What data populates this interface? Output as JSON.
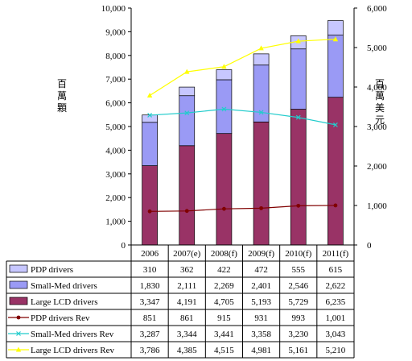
{
  "chart_data": {
    "type": "bar",
    "stacked": true,
    "categories": [
      "2006",
      "2007(e)",
      "2008(f)",
      "2009(f)",
      "2010(f)",
      "2011(f)"
    ],
    "ylabel_left": "百萬顆",
    "ylabel_right": "百萬美元",
    "ylim_left": [
      0,
      10000
    ],
    "ylim_right": [
      0,
      6000
    ],
    "left_ticks": [
      "0",
      "1,000",
      "2,000",
      "3,000",
      "4,000",
      "5,000",
      "6,000",
      "7,000",
      "8,000",
      "9,000",
      "10,000"
    ],
    "right_ticks": [
      "0",
      "1,000",
      "2,000",
      "3,000",
      "4,000",
      "5,000",
      "6,000"
    ],
    "series": [
      {
        "name": "PDP drivers",
        "kind": "bar",
        "axis": "left",
        "color": "#c7c7ff",
        "values": [
          310,
          362,
          422,
          472,
          555,
          615
        ],
        "labels": [
          "310",
          "362",
          "422",
          "472",
          "555",
          "615"
        ]
      },
      {
        "name": "Small-Med drivers",
        "kind": "bar",
        "axis": "left",
        "color": "#9a9af5",
        "values": [
          1830,
          2111,
          2269,
          2401,
          2546,
          2622
        ],
        "labels": [
          "1,830",
          "2,111",
          "2,269",
          "2,401",
          "2,546",
          "2,622"
        ]
      },
      {
        "name": "Large LCD drivers",
        "kind": "bar",
        "axis": "left",
        "color": "#993366",
        "values": [
          3347,
          4191,
          4705,
          5193,
          5729,
          6235
        ],
        "labels": [
          "3,347",
          "4,191",
          "4,705",
          "5,193",
          "5,729",
          "6,235"
        ]
      },
      {
        "name": "PDP drivers Rev",
        "kind": "line",
        "axis": "right",
        "color": "#800000",
        "marker": "circle",
        "values": [
          851,
          861,
          915,
          931,
          993,
          1001
        ],
        "labels": [
          "851",
          "861",
          "915",
          "931",
          "993",
          "1,001"
        ]
      },
      {
        "name": "Small-Med drivers Rev",
        "kind": "line",
        "axis": "right",
        "color": "#22cccc",
        "marker": "x",
        "values": [
          3287,
          3344,
          3441,
          3358,
          3230,
          3043
        ],
        "labels": [
          "3,287",
          "3,344",
          "3,441",
          "3,358",
          "3,230",
          "3,043"
        ]
      },
      {
        "name": "Large LCD drivers Rev",
        "kind": "line",
        "axis": "right",
        "color": "#ffff00",
        "marker": "triangle",
        "values": [
          3786,
          4385,
          4515,
          4981,
          5161,
          5210
        ],
        "labels": [
          "3,786",
          "4,385",
          "4,515",
          "4,981",
          "5,161",
          "5,210"
        ]
      }
    ],
    "grid": false,
    "legend": "data-table-below"
  }
}
